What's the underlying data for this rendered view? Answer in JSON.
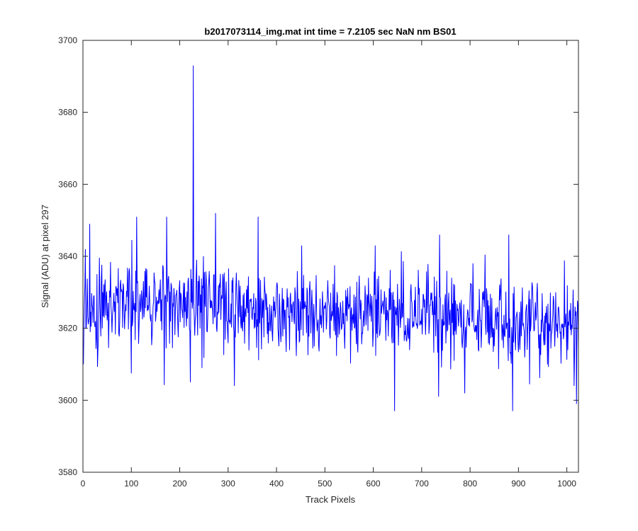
{
  "chart_data": {
    "type": "line",
    "title": "b2017073114_img.mat int time = 7.2105 sec  NaN nm BS01",
    "xlabel": "Track Pixels",
    "ylabel": "Signal (ADU) at pixel 297",
    "xlim": [
      0,
      1024
    ],
    "ylim": [
      3580,
      3700
    ],
    "xticks": [
      "0",
      "100",
      "200",
      "300",
      "400",
      "500",
      "600",
      "700",
      "800",
      "900",
      "1000"
    ],
    "yticks": [
      "3580",
      "3600",
      "3620",
      "3640",
      "3660",
      "3680",
      "3700"
    ],
    "grid": false,
    "line_color": "#0000ff",
    "series": [
      {
        "x_start": 1,
        "x_step": 1,
        "noise_floor": 3613,
        "noise_ceiling": 3636,
        "level_points": [
          [
            1,
            3625
          ],
          [
            200,
            3628
          ],
          [
            400,
            3624
          ],
          [
            700,
            3623
          ],
          [
            1024,
            3621
          ]
        ],
        "spikes": [
          {
            "x": 1,
            "y": 3610
          },
          {
            "x": 5,
            "y": 3642
          },
          {
            "x": 14,
            "y": 3649
          },
          {
            "x": 111,
            "y": 3651
          },
          {
            "x": 173,
            "y": 3651
          },
          {
            "x": 222,
            "y": 3605
          },
          {
            "x": 228,
            "y": 3693
          },
          {
            "x": 274,
            "y": 3652
          },
          {
            "x": 313,
            "y": 3604
          },
          {
            "x": 362,
            "y": 3651
          },
          {
            "x": 452,
            "y": 3643
          },
          {
            "x": 604,
            "y": 3643
          },
          {
            "x": 644,
            "y": 3597
          },
          {
            "x": 735,
            "y": 3601
          },
          {
            "x": 737,
            "y": 3646
          },
          {
            "x": 880,
            "y": 3646
          },
          {
            "x": 888,
            "y": 3597
          },
          {
            "x": 1015,
            "y": 3604
          },
          {
            "x": 1020,
            "y": 3599
          }
        ]
      }
    ]
  }
}
